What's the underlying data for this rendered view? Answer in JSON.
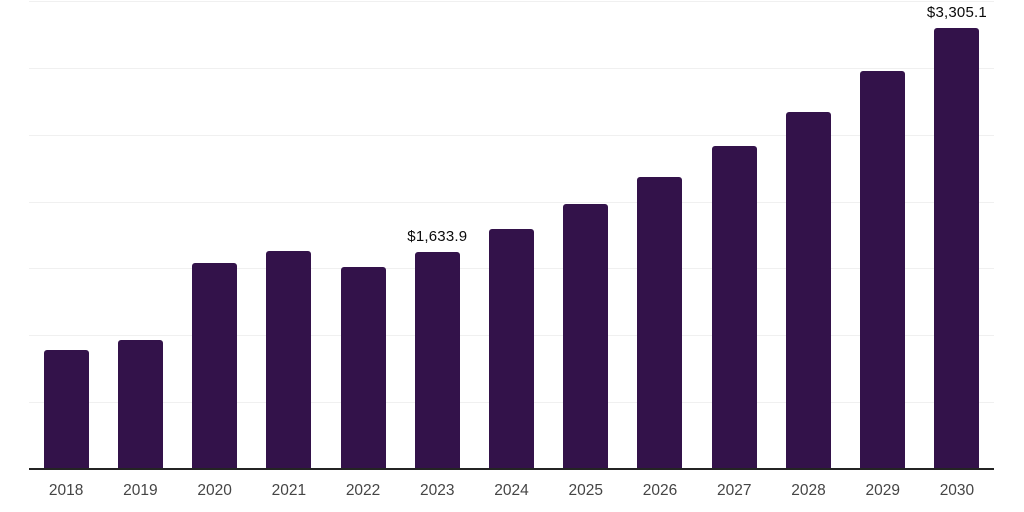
{
  "chart_data": {
    "type": "bar",
    "title": "",
    "xlabel": "",
    "ylabel": "",
    "categories": [
      "2018",
      "2019",
      "2020",
      "2021",
      "2022",
      "2023",
      "2024",
      "2025",
      "2026",
      "2027",
      "2028",
      "2029",
      "2030"
    ],
    "values": [
      895,
      975,
      1545,
      1640,
      1515,
      1633.9,
      1805,
      1990,
      2195,
      2425,
      2680,
      2985,
      3305.1
    ],
    "data_labels": {
      "2023": "$1,633.9",
      "2030": "$3,305.1"
    },
    "ylim": [
      0,
      3500
    ],
    "gridline_step": 500,
    "grid": true,
    "legend": "none",
    "colors": {
      "bar_fill": "#33124a",
      "axis_line": "#242424",
      "gridline": "#f0f0f0",
      "tick_label": "#454545",
      "data_label": "#0a0a0a",
      "background": "#ffffff"
    }
  }
}
